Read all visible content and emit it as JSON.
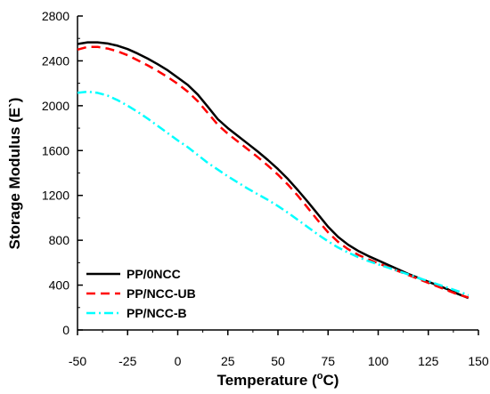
{
  "chart_data": {
    "type": "line",
    "title": "",
    "xlabel": "Temperature (",
    "xlabel_sup": "o",
    "xlabel_end": "C)",
    "ylabel": "Storage Modulus (E`)",
    "xlim": [
      -50,
      150
    ],
    "ylim": [
      0,
      2800
    ],
    "xticks": [
      -50,
      -25,
      0,
      25,
      50,
      75,
      100,
      125,
      150
    ],
    "yticks": [
      0,
      400,
      800,
      1200,
      1600,
      2000,
      2400,
      2800
    ],
    "grid": false,
    "legend_position": "bottom-left",
    "series": [
      {
        "name": "PP/0NCC",
        "color": "#000000",
        "dash": "solid",
        "x": [
          -50,
          -45,
          -40,
          -35,
          -30,
          -25,
          -20,
          -15,
          -10,
          -5,
          0,
          5,
          10,
          15,
          20,
          25,
          30,
          35,
          40,
          45,
          50,
          55,
          60,
          65,
          70,
          75,
          80,
          85,
          90,
          95,
          100,
          105,
          110,
          115,
          120,
          125,
          130,
          135,
          140,
          145
        ],
        "y": [
          2550,
          2565,
          2565,
          2555,
          2535,
          2505,
          2465,
          2420,
          2370,
          2315,
          2250,
          2185,
          2100,
          1990,
          1880,
          1800,
          1730,
          1660,
          1590,
          1515,
          1435,
          1345,
          1245,
          1140,
          1030,
          920,
          830,
          760,
          705,
          660,
          620,
          580,
          540,
          500,
          465,
          430,
          395,
          360,
          320,
          285
        ]
      },
      {
        "name": "PP/NCC-UB",
        "color": "#ff0000",
        "dash": "dashed",
        "x": [
          -50,
          -45,
          -40,
          -35,
          -30,
          -25,
          -20,
          -15,
          -10,
          -5,
          0,
          5,
          10,
          15,
          20,
          25,
          30,
          35,
          40,
          45,
          50,
          55,
          60,
          65,
          70,
          75,
          80,
          85,
          90,
          95,
          100,
          105,
          110,
          115,
          120,
          125,
          130,
          135,
          140,
          145
        ],
        "y": [
          2500,
          2525,
          2525,
          2510,
          2485,
          2450,
          2405,
          2360,
          2310,
          2255,
          2195,
          2125,
          2040,
          1935,
          1830,
          1750,
          1680,
          1610,
          1540,
          1465,
          1385,
          1295,
          1195,
          1085,
          975,
          870,
          785,
          720,
          670,
          630,
          595,
          560,
          525,
          490,
          455,
          420,
          385,
          350,
          315,
          290
        ]
      },
      {
        "name": "PP/NCC-B",
        "color": "#00ffff",
        "dash": "dashdot",
        "x": [
          -50,
          -45,
          -40,
          -35,
          -30,
          -25,
          -20,
          -15,
          -10,
          -5,
          0,
          5,
          10,
          15,
          20,
          25,
          30,
          35,
          40,
          45,
          50,
          55,
          60,
          65,
          70,
          75,
          80,
          85,
          90,
          95,
          100,
          105,
          110,
          115,
          120,
          125,
          130,
          135,
          140,
          145
        ],
        "y": [
          2115,
          2125,
          2115,
          2090,
          2050,
          2000,
          1945,
          1885,
          1820,
          1755,
          1690,
          1630,
          1560,
          1490,
          1430,
          1370,
          1315,
          1260,
          1210,
          1160,
          1105,
          1045,
          980,
          915,
          850,
          790,
          735,
          690,
          650,
          615,
          585,
          555,
          525,
          495,
          465,
          435,
          405,
          375,
          345,
          310
        ]
      }
    ]
  }
}
